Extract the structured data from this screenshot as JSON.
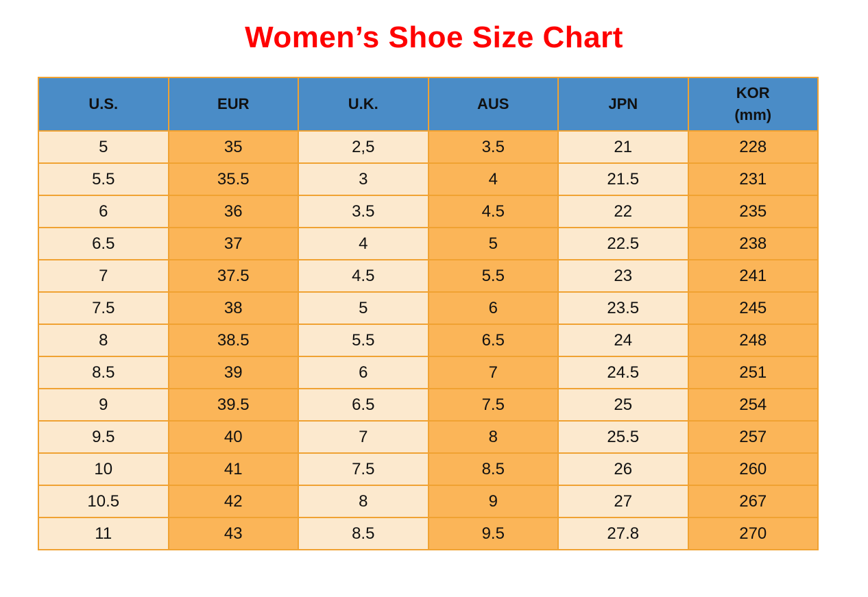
{
  "title": "Women’s Shoe Size Chart",
  "colors": {
    "title_red": "#fe0000",
    "header_blue": "#4a8cc7",
    "column_cream": "#fce9ce",
    "column_orange": "#fbb558",
    "grid_orange": "#f0a232",
    "text_black": "#111111"
  },
  "table": {
    "columns": [
      {
        "label": "U.S.",
        "sublabel": ""
      },
      {
        "label": "EUR",
        "sublabel": ""
      },
      {
        "label": "U.K.",
        "sublabel": ""
      },
      {
        "label": "AUS",
        "sublabel": ""
      },
      {
        "label": "JPN",
        "sublabel": ""
      },
      {
        "label": "KOR",
        "sublabel": "(mm)"
      }
    ],
    "rows": [
      [
        "5",
        "35",
        "2,5",
        "3.5",
        "21",
        "228"
      ],
      [
        "5.5",
        "35.5",
        "3",
        "4",
        "21.5",
        "231"
      ],
      [
        "6",
        "36",
        "3.5",
        "4.5",
        "22",
        "235"
      ],
      [
        "6.5",
        "37",
        "4",
        "5",
        "22.5",
        "238"
      ],
      [
        "7",
        "37.5",
        "4.5",
        "5.5",
        "23",
        "241"
      ],
      [
        "7.5",
        "38",
        "5",
        "6",
        "23.5",
        "245"
      ],
      [
        "8",
        "38.5",
        "5.5",
        "6.5",
        "24",
        "248"
      ],
      [
        "8.5",
        "39",
        "6",
        "7",
        "24.5",
        "251"
      ],
      [
        "9",
        "39.5",
        "6.5",
        "7.5",
        "25",
        "254"
      ],
      [
        "9.5",
        "40",
        "7",
        "8",
        "25.5",
        "257"
      ],
      [
        "10",
        "41",
        "7.5",
        "8.5",
        "26",
        "260"
      ],
      [
        "10.5",
        "42",
        "8",
        "9",
        "27",
        "267"
      ],
      [
        "11",
        "43",
        "8.5",
        "9.5",
        "27.8",
        "270"
      ]
    ]
  },
  "chart_data": {
    "type": "table",
    "title": "Women’s Shoe Size Chart",
    "columns": [
      "U.S.",
      "EUR",
      "U.K.",
      "AUS",
      "JPN",
      "KOR (mm)"
    ],
    "rows": [
      [
        "5",
        "35",
        "2,5",
        "3.5",
        "21",
        "228"
      ],
      [
        "5.5",
        "35.5",
        "3",
        "4",
        "21.5",
        "231"
      ],
      [
        "6",
        "36",
        "3.5",
        "4.5",
        "22",
        "235"
      ],
      [
        "6.5",
        "37",
        "4",
        "5",
        "22.5",
        "238"
      ],
      [
        "7",
        "37.5",
        "4.5",
        "5.5",
        "23",
        "241"
      ],
      [
        "7.5",
        "38",
        "5",
        "6",
        "23.5",
        "245"
      ],
      [
        "8",
        "38.5",
        "5.5",
        "6.5",
        "24",
        "248"
      ],
      [
        "8.5",
        "39",
        "6",
        "7",
        "24.5",
        "251"
      ],
      [
        "9",
        "39.5",
        "6.5",
        "7.5",
        "25",
        "254"
      ],
      [
        "9.5",
        "40",
        "7",
        "8",
        "25.5",
        "257"
      ],
      [
        "10",
        "41",
        "7.5",
        "8.5",
        "26",
        "260"
      ],
      [
        "10.5",
        "42",
        "8",
        "9",
        "27",
        "267"
      ],
      [
        "11",
        "43",
        "8.5",
        "9.5",
        "27.8",
        "270"
      ]
    ],
    "layout_hints": {
      "header_fill": "#4a8cc7",
      "odd_column_fill": "#fce9ce",
      "even_column_fill": "#fbb558",
      "grid": true
    }
  }
}
